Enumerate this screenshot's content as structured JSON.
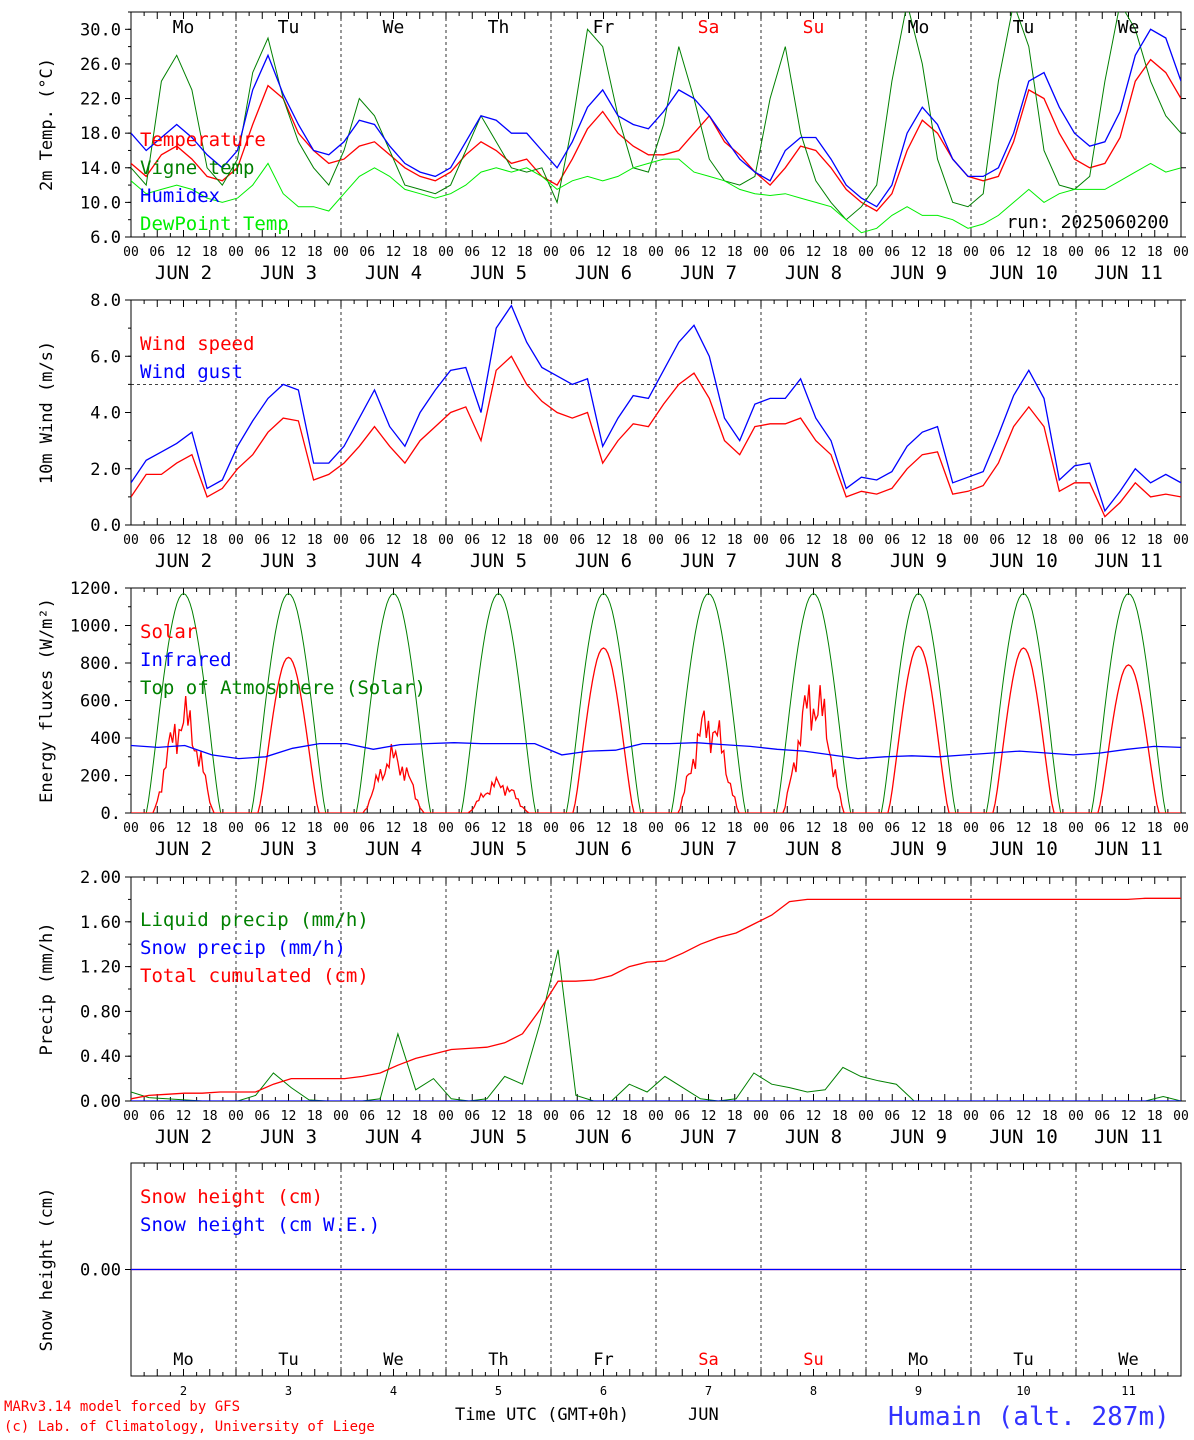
{
  "days": [
    "Mo",
    "Tu",
    "We",
    "Th",
    "Fr",
    "Sa",
    "Su",
    "Mo",
    "Tu",
    "We"
  ],
  "weekend_days": [
    5,
    6
  ],
  "date_labels": [
    "JUN  2",
    "JUN  3",
    "JUN  4",
    "JUN  5",
    "JUN  6",
    "JUN  7",
    "JUN  8",
    "JUN  9",
    "JUN 10",
    "JUN 11"
  ],
  "day_numbers": [
    "2",
    "3",
    "4",
    "5",
    "6",
    "7",
    "8",
    "9",
    "10",
    "11"
  ],
  "hour_ticks": [
    "00",
    "06",
    "12",
    "18"
  ],
  "end_tick": "00",
  "colors": {
    "red": "#ff0000",
    "green": "#008000",
    "blue": "#0000ff",
    "lime": "#00ee00",
    "grey": "#000000",
    "weekend": "#ff0000",
    "station": "#3333ff"
  },
  "run_label": "run: 2025060200",
  "footer": {
    "model": "MARv3.14 model forced by GFS",
    "credit": "(c) Lab. of Climatology, University of Liege",
    "axis_title": "Time UTC (GMT+0h)",
    "month": "JUN",
    "station": "Humain (alt. 287m)"
  },
  "chart_data": [
    {
      "type": "line",
      "ylabel": "2m Temp. (°C)",
      "ylim": [
        6,
        32
      ],
      "ticks": [
        "6.0",
        "10.0",
        "14.0",
        "18.0",
        "22.0",
        "26.0",
        "30.0"
      ],
      "tick_values": [
        6,
        10,
        14,
        18,
        22,
        26,
        30
      ],
      "legend": [
        "Temperature",
        "Vigne temp",
        "Humidex",
        "DewPoint Temp"
      ],
      "series": [
        {
          "name": "Temperature",
          "color": "red",
          "values": [
            14.5,
            13,
            15.5,
            16.5,
            15,
            13,
            12.5,
            14,
            19,
            23.5,
            22,
            18,
            16,
            14.5,
            15,
            16.5,
            17,
            15.5,
            14,
            13,
            12.5,
            13.5,
            15.5,
            17,
            16,
            14.5,
            15,
            13,
            12,
            15,
            18.5,
            20.5,
            18,
            16.5,
            15.5,
            15.5,
            16,
            18,
            20,
            17,
            15.5,
            13.5,
            12,
            14,
            16.5,
            16,
            14,
            11.5,
            10,
            9,
            11,
            16,
            19.5,
            18,
            15,
            13,
            12.5,
            13,
            17,
            23,
            22,
            18,
            15,
            14,
            14.5,
            17.5,
            24,
            26.5,
            25,
            22
          ]
        },
        {
          "name": "Vigne temp",
          "color": "green",
          "values": [
            14,
            12,
            24,
            27,
            23,
            14,
            12,
            15,
            25,
            29,
            22,
            17,
            14,
            12,
            16,
            22,
            20,
            16,
            12,
            11.5,
            11,
            12,
            16,
            20,
            17,
            14,
            13.5,
            14,
            10,
            19,
            30,
            28,
            20,
            14,
            13.5,
            19,
            28,
            22,
            15,
            12.5,
            12,
            13,
            22,
            28,
            18,
            12.5,
            10,
            8,
            9.5,
            12,
            24,
            33,
            26,
            15,
            10,
            9.5,
            11,
            24,
            33,
            28,
            16,
            12,
            11.5,
            13,
            24,
            33,
            30,
            24,
            20,
            18
          ]
        },
        {
          "name": "Humidex",
          "color": "blue",
          "values": [
            18,
            16,
            17.5,
            19,
            17.5,
            15.5,
            14,
            16,
            23,
            27,
            22.5,
            19,
            16,
            15.5,
            17,
            19.5,
            19,
            16.5,
            14.5,
            13.5,
            13,
            14,
            17,
            20,
            19.5,
            18,
            18,
            16,
            14,
            17,
            21,
            23,
            20,
            19,
            18.5,
            20.5,
            23,
            22,
            20,
            17.5,
            15,
            13.5,
            12.5,
            16,
            17.5,
            17.5,
            15,
            12,
            10.5,
            9.5,
            12,
            18,
            21,
            19,
            15,
            13,
            13,
            14,
            18,
            24,
            25,
            21,
            18,
            16.5,
            17,
            20.5,
            27,
            30,
            29,
            24
          ]
        },
        {
          "name": "DewPoint Temp",
          "color": "lime",
          "values": [
            12.5,
            11,
            11.5,
            12,
            11.5,
            10.5,
            10,
            10.5,
            12,
            14.5,
            11,
            9.5,
            9.5,
            9,
            11,
            13,
            14,
            13,
            11.5,
            11,
            10.5,
            11,
            12,
            13.5,
            14,
            13.5,
            14,
            13,
            11.5,
            12.5,
            13,
            12.5,
            13,
            14,
            14.5,
            15,
            15,
            13.5,
            13,
            12.5,
            11.5,
            11,
            10.8,
            11,
            10.5,
            10,
            9.5,
            8,
            6.5,
            7,
            8.5,
            9.5,
            8.5,
            8.5,
            8,
            7,
            7.5,
            8.5,
            10,
            11.5,
            10,
            11,
            11.5,
            11.5,
            11.5,
            12.5,
            13.5,
            14.5,
            13.5,
            14
          ]
        }
      ]
    },
    {
      "type": "line",
      "ylabel": "10m Wind (m/s)",
      "ylim": [
        0,
        8
      ],
      "ticks": [
        "0.0",
        "2.0",
        "4.0",
        "6.0",
        "8.0"
      ],
      "tick_values": [
        0,
        2,
        4,
        6,
        8
      ],
      "reference_line": 5,
      "legend": [
        "Wind speed",
        "Wind gust"
      ],
      "series": [
        {
          "name": "Wind speed",
          "color": "red",
          "values": [
            1,
            1.8,
            1.8,
            2.2,
            2.5,
            1,
            1.3,
            2,
            2.5,
            3.3,
            3.8,
            3.7,
            1.6,
            1.8,
            2.2,
            2.8,
            3.5,
            2.8,
            2.2,
            3,
            3.5,
            4,
            4.2,
            3,
            5.5,
            6,
            5,
            4.4,
            4,
            3.8,
            4,
            2.2,
            3,
            3.6,
            3.5,
            4.3,
            5,
            5.4,
            4.5,
            3,
            2.5,
            3.5,
            3.6,
            3.6,
            3.8,
            3,
            2.5,
            1,
            1.2,
            1.1,
            1.3,
            2,
            2.5,
            2.6,
            1.1,
            1.2,
            1.4,
            2.2,
            3.5,
            4.2,
            3.5,
            1.2,
            1.5,
            1.5,
            0.3,
            0.8,
            1.5,
            1,
            1.1,
            1
          ]
        },
        {
          "name": "Wind gust",
          "color": "blue",
          "values": [
            1.5,
            2.3,
            2.6,
            2.9,
            3.3,
            1.3,
            1.6,
            2.8,
            3.7,
            4.5,
            5,
            4.8,
            2.2,
            2.2,
            2.8,
            3.8,
            4.8,
            3.5,
            2.8,
            4,
            4.8,
            5.5,
            5.6,
            4,
            7,
            7.8,
            6.5,
            5.6,
            5.3,
            5,
            5.2,
            2.8,
            3.8,
            4.6,
            4.5,
            5.5,
            6.5,
            7.1,
            6,
            3.8,
            3,
            4.3,
            4.5,
            4.5,
            5.2,
            3.8,
            3,
            1.3,
            1.7,
            1.6,
            1.9,
            2.8,
            3.3,
            3.5,
            1.5,
            1.7,
            1.9,
            3.2,
            4.6,
            5.5,
            4.5,
            1.6,
            2.1,
            2.2,
            0.5,
            1.2,
            2,
            1.5,
            1.8,
            1.5
          ]
        }
      ]
    },
    {
      "type": "line",
      "ylabel": "Energy fluxes (W/m²)",
      "ylim": [
        0,
        1200
      ],
      "ticks": [
        "0.",
        "200.",
        "400",
        "600.",
        "800.",
        "1000.",
        "1200."
      ],
      "tick_values": [
        0,
        200,
        400,
        600,
        800,
        1000,
        1200
      ],
      "legend": [
        "Solar",
        "Infrared",
        "Top of Atmosphere (Solar)"
      ],
      "solar_peaks": [
        650,
        830,
        380,
        200,
        880,
        620,
        790,
        890,
        880,
        790
      ],
      "toa_peak": 1170,
      "infrared_values": [
        360,
        350,
        360,
        310,
        290,
        300,
        345,
        370,
        370,
        340,
        365,
        370,
        375,
        370,
        370,
        370,
        310,
        330,
        335,
        370,
        370,
        375,
        365,
        355,
        340,
        330,
        310,
        290,
        300,
        305,
        300,
        310,
        320,
        330,
        320,
        310,
        320,
        340,
        355,
        350
      ],
      "series": [
        {
          "name": "Solar",
          "color": "red"
        },
        {
          "name": "Infrared",
          "color": "blue"
        },
        {
          "name": "Top of Atmosphere (Solar)",
          "color": "green"
        }
      ]
    },
    {
      "type": "line",
      "ylabel": "Precip (mm/h)",
      "ylim": [
        0,
        2
      ],
      "ticks": [
        "0.00",
        "0.40",
        "0.80",
        "1.20",
        "1.60",
        "2.00"
      ],
      "tick_values": [
        0,
        0.4,
        0.8,
        1.2,
        1.6,
        2.0
      ],
      "legend": [
        "Liquid precip (mm/h)",
        "Snow precip (mm/h)",
        "Total cumulated (cm)"
      ],
      "series": [
        {
          "name": "Liquid precip (mm/h)",
          "color": "green",
          "values": [
            0.08,
            0.03,
            0.02,
            0.01,
            0.0,
            0.0,
            0.0,
            0.05,
            0.25,
            0.12,
            0.01,
            0.0,
            0.0,
            0.0,
            0.02,
            0.6,
            0.1,
            0.2,
            0.02,
            0.0,
            0.02,
            0.22,
            0.15,
            0.7,
            1.35,
            0.05,
            0.0,
            0.0,
            0.15,
            0.08,
            0.22,
            0.12,
            0.02,
            0.0,
            0.02,
            0.25,
            0.15,
            0.12,
            0.08,
            0.1,
            0.3,
            0.22,
            0.18,
            0.15,
            0.0,
            0.0,
            0.0,
            0.0,
            0.0,
            0.0,
            0.0,
            0.0,
            0.0,
            0.0,
            0.0,
            0.0,
            0.0,
            0.0,
            0.04,
            0.0
          ]
        },
        {
          "name": "Snow precip (mm/h)",
          "color": "blue",
          "values": [
            0,
            0,
            0,
            0,
            0,
            0,
            0,
            0,
            0,
            0,
            0,
            0,
            0,
            0,
            0,
            0,
            0,
            0,
            0,
            0,
            0,
            0,
            0,
            0,
            0,
            0,
            0,
            0,
            0,
            0,
            0,
            0,
            0,
            0,
            0,
            0,
            0,
            0,
            0,
            0,
            0,
            0,
            0,
            0,
            0,
            0,
            0,
            0,
            0,
            0,
            0,
            0,
            0,
            0,
            0,
            0,
            0,
            0,
            0,
            0
          ]
        },
        {
          "name": "Total cumulated (cm)",
          "color": "red",
          "values": [
            0.02,
            0.05,
            0.06,
            0.07,
            0.07,
            0.08,
            0.08,
            0.08,
            0.15,
            0.2,
            0.2,
            0.2,
            0.2,
            0.22,
            0.25,
            0.32,
            0.38,
            0.42,
            0.46,
            0.47,
            0.48,
            0.52,
            0.6,
            0.82,
            1.07,
            1.07,
            1.08,
            1.12,
            1.2,
            1.24,
            1.25,
            1.32,
            1.4,
            1.46,
            1.5,
            1.58,
            1.66,
            1.78,
            1.8,
            1.8,
            1.8,
            1.8,
            1.8,
            1.8,
            1.8,
            1.8,
            1.8,
            1.8,
            1.8,
            1.8,
            1.8,
            1.8,
            1.8,
            1.8,
            1.8,
            1.8,
            1.8,
            1.81,
            1.81,
            1.81
          ]
        }
      ]
    },
    {
      "type": "line",
      "ylabel": "Snow height (cm)",
      "ylim": [
        -1,
        1
      ],
      "ticks": [
        "0.00"
      ],
      "tick_values": [
        0
      ],
      "legend": [
        "Snow height (cm)",
        "Snow height (cm W.E.)"
      ],
      "series": [
        {
          "name": "Snow height (cm)",
          "color": "red",
          "values": [
            0,
            0
          ]
        },
        {
          "name": "Snow height (cm W.E.)",
          "color": "blue",
          "values": [
            0,
            0
          ]
        }
      ]
    }
  ]
}
